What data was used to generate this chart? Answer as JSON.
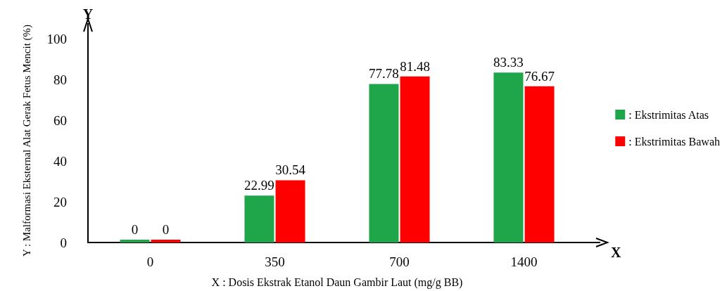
{
  "chart_data": {
    "type": "bar",
    "xlabel": "X : Dosis Ekstrak Etanol Daun Gambir Laut (mg/g BB)",
    "ylabel": "Y : Malformasi Eksternal Alat Gerak Fetus Mencit (%)",
    "categories": [
      "0",
      "350",
      "700",
      "1400"
    ],
    "series": [
      {
        "name": ": Ekstrimitas Atas",
        "color": "#1fa64a",
        "values": [
          0,
          22.99,
          77.78,
          83.33
        ]
      },
      {
        "name": ": Ekstrimitas Bawah",
        "color": "#ff0000",
        "values": [
          0,
          30.54,
          81.48,
          76.67
        ]
      }
    ],
    "ylim": [
      0,
      100
    ],
    "yticks": [
      0,
      20,
      40,
      60,
      80,
      100
    ],
    "grid": false,
    "legend": "right",
    "data_labels": true,
    "annotations": [
      {
        "text": "Y"
      },
      {
        "text": "X"
      }
    ]
  }
}
